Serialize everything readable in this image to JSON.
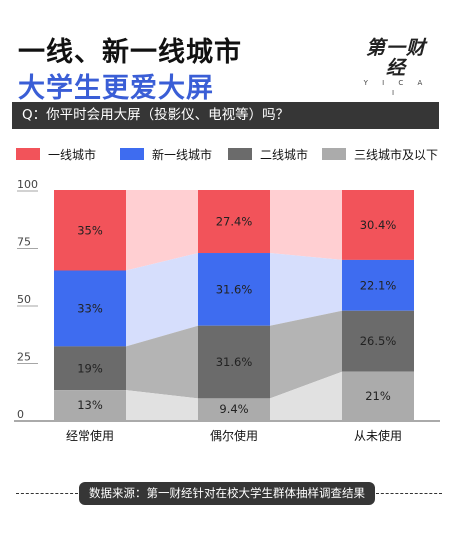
{
  "header": {
    "title_line1": "一线、新一线城市",
    "title_line2": "大学生更爱大屏",
    "logo_text": "第一财经",
    "logo_sub": "Y I C A I"
  },
  "question": "Q：你平时会用大屏（投影仪、电视等）吗？",
  "footer": {
    "source": "数据来源：第一财经针对在校大学生群体抽样调查结果"
  },
  "colors": {
    "tier1": "#f2535a",
    "new_tier1": "#3e6cf0",
    "tier2": "#6b6b6b",
    "tier3_below": "#ababab",
    "title_accent": "#3a5ed6"
  },
  "chart_data": {
    "type": "bar",
    "stacked": true,
    "categories": [
      "经常使用",
      "偶尔使用",
      "从未使用"
    ],
    "series": [
      {
        "name": "一线城市",
        "values": [
          35,
          27.4,
          30.4
        ],
        "labels": [
          "35%",
          "27.4%",
          "30.4%"
        ]
      },
      {
        "name": "新一线城市",
        "values": [
          33,
          31.6,
          22.1
        ],
        "labels": [
          "33%",
          "31.6%",
          "22.1%"
        ]
      },
      {
        "name": "二线城市",
        "values": [
          19,
          31.6,
          26.5
        ],
        "labels": [
          "19%",
          "31.6%",
          "26.5%"
        ]
      },
      {
        "name": "三线城市及以下",
        "values": [
          13,
          9.4,
          21
        ],
        "labels": [
          "13%",
          "9.4%",
          "21%"
        ]
      }
    ],
    "yticks": [
      "0",
      "25",
      "50",
      "75",
      "100"
    ],
    "ylim": [
      0,
      100
    ],
    "legend_position": "top"
  }
}
